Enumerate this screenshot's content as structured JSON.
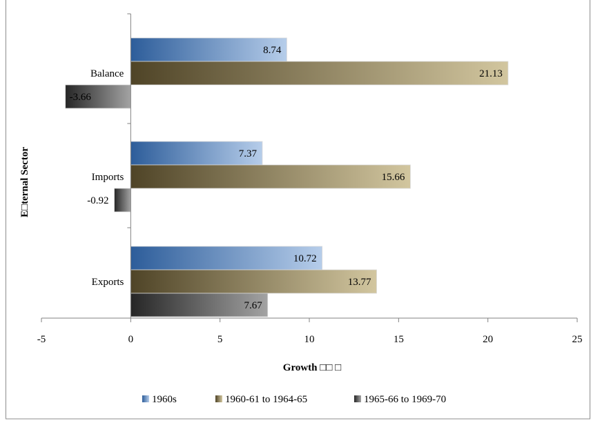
{
  "chart_data": {
    "type": "bar",
    "orientation": "horizontal",
    "title": "",
    "xlabel": "Growth □□ □",
    "ylabel": "E□ternal Sector",
    "categories": [
      "Balance",
      "Imports",
      "Exports"
    ],
    "series": [
      {
        "name": "1960s",
        "values": [
          8.74,
          7.37,
          10.72
        ],
        "color_start": "#2d5d9a",
        "color_end": "#b6cdea"
      },
      {
        "name": "1960-61 to 1964-65",
        "values": [
          21.13,
          15.66,
          13.77
        ],
        "color_start": "#4f4427",
        "color_end": "#d2c69f"
      },
      {
        "name": "1965-66 to 1969-70",
        "values": [
          -3.66,
          -0.92,
          7.67
        ],
        "color_start": "#262626",
        "color_end": "#a3a3a3"
      }
    ],
    "xlim": [
      -5,
      25
    ],
    "xticks": [
      -5,
      0,
      5,
      10,
      15,
      20,
      25
    ],
    "grid": false,
    "legend_position": "bottom"
  }
}
